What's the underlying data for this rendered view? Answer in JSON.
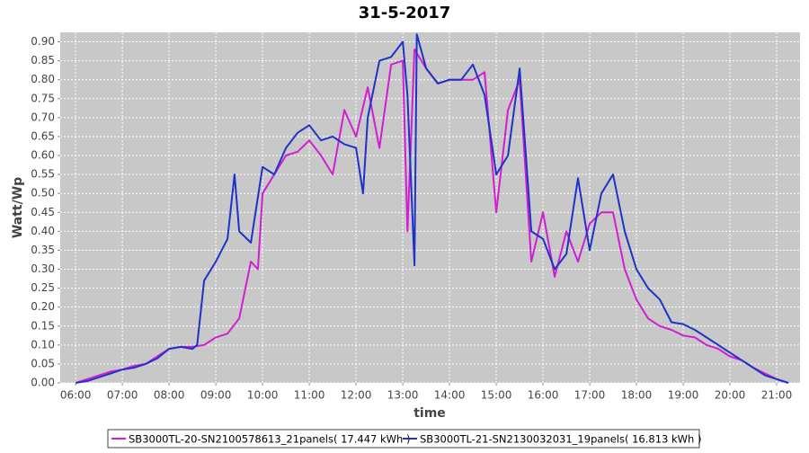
{
  "chart_data": {
    "type": "line",
    "title": "31-5-2017",
    "x_label": "time",
    "y_label": "Watt/Wp",
    "xlim": [
      5.67,
      21.5
    ],
    "ylim": [
      0,
      0.925
    ],
    "grid": true,
    "legend": "bottom",
    "xticks": [
      {
        "value": 6,
        "label": "06:00"
      },
      {
        "value": 7,
        "label": "07:00"
      },
      {
        "value": 8,
        "label": "08:00"
      },
      {
        "value": 9,
        "label": "09:00"
      },
      {
        "value": 10,
        "label": "10:00"
      },
      {
        "value": 11,
        "label": "11:00"
      },
      {
        "value": 12,
        "label": "12:00"
      },
      {
        "value": 13,
        "label": "13:00"
      },
      {
        "value": 14,
        "label": "14:00"
      },
      {
        "value": 15,
        "label": "15:00"
      },
      {
        "value": 16,
        "label": "16:00"
      },
      {
        "value": 17,
        "label": "17:00"
      },
      {
        "value": 18,
        "label": "18:00"
      },
      {
        "value": 19,
        "label": "19:00"
      },
      {
        "value": 20,
        "label": "20:00"
      },
      {
        "value": 21,
        "label": "21:00"
      }
    ],
    "yticks": [
      {
        "value": 0,
        "label": "0.00"
      },
      {
        "value": 0.05,
        "label": "0.05"
      },
      {
        "value": 0.1,
        "label": "0.10"
      },
      {
        "value": 0.15,
        "label": "0.15"
      },
      {
        "value": 0.2,
        "label": "0.20"
      },
      {
        "value": 0.25,
        "label": "0.25"
      },
      {
        "value": 0.3,
        "label": "0.30"
      },
      {
        "value": 0.35,
        "label": "0.35"
      },
      {
        "value": 0.4,
        "label": "0.40"
      },
      {
        "value": 0.45,
        "label": "0.45"
      },
      {
        "value": 0.5,
        "label": "0.50"
      },
      {
        "value": 0.55,
        "label": "0.55"
      },
      {
        "value": 0.6,
        "label": "0.60"
      },
      {
        "value": 0.65,
        "label": "0.65"
      },
      {
        "value": 0.7,
        "label": "0.70"
      },
      {
        "value": 0.75,
        "label": "0.75"
      },
      {
        "value": 0.8,
        "label": "0.80"
      },
      {
        "value": 0.85,
        "label": "0.85"
      },
      {
        "value": 0.9,
        "label": "0.90"
      }
    ],
    "series": [
      {
        "name": "SB3000TL-20-SN2100578613_21panels( 17.447 kWh )",
        "color": "#d21ed2",
        "x": [
          6.0,
          6.25,
          6.5,
          6.75,
          7.0,
          7.25,
          7.5,
          7.75,
          8.0,
          8.25,
          8.5,
          8.75,
          9.0,
          9.25,
          9.5,
          9.75,
          9.9,
          10.0,
          10.25,
          10.5,
          10.75,
          11.0,
          11.25,
          11.5,
          11.75,
          12.0,
          12.25,
          12.5,
          12.75,
          13.0,
          13.1,
          13.25,
          13.5,
          13.75,
          14.0,
          14.25,
          14.5,
          14.75,
          15.0,
          15.25,
          15.5,
          15.75,
          16.0,
          16.25,
          16.5,
          16.75,
          17.0,
          17.25,
          17.5,
          17.75,
          18.0,
          18.25,
          18.5,
          18.75,
          19.0,
          19.25,
          19.5,
          19.75,
          20.0,
          20.25,
          20.5,
          20.75,
          21.0,
          21.25
        ],
        "values": [
          0.0,
          0.01,
          0.02,
          0.03,
          0.035,
          0.045,
          0.05,
          0.07,
          0.09,
          0.095,
          0.095,
          0.1,
          0.12,
          0.13,
          0.17,
          0.32,
          0.3,
          0.5,
          0.55,
          0.6,
          0.61,
          0.64,
          0.6,
          0.55,
          0.72,
          0.65,
          0.78,
          0.62,
          0.84,
          0.85,
          0.4,
          0.88,
          0.83,
          0.79,
          0.8,
          0.8,
          0.8,
          0.82,
          0.45,
          0.72,
          0.8,
          0.32,
          0.45,
          0.28,
          0.4,
          0.32,
          0.42,
          0.45,
          0.45,
          0.3,
          0.22,
          0.17,
          0.15,
          0.14,
          0.125,
          0.12,
          0.1,
          0.09,
          0.07,
          0.06,
          0.04,
          0.025,
          0.01,
          0.0
        ]
      },
      {
        "name": "SB3000TL-21-SN2130032031_19panels( 16.813 kWh )",
        "color": "#1e32c8",
        "x": [
          6.0,
          6.25,
          6.5,
          6.75,
          7.0,
          7.25,
          7.5,
          7.75,
          8.0,
          8.25,
          8.5,
          8.6,
          8.75,
          9.0,
          9.25,
          9.4,
          9.5,
          9.75,
          10.0,
          10.25,
          10.5,
          10.75,
          11.0,
          11.25,
          11.5,
          11.75,
          12.0,
          12.15,
          12.25,
          12.5,
          12.75,
          13.0,
          13.1,
          13.25,
          13.3,
          13.5,
          13.75,
          14.0,
          14.25,
          14.5,
          14.75,
          15.0,
          15.25,
          15.5,
          15.75,
          16.0,
          16.25,
          16.5,
          16.75,
          17.0,
          17.25,
          17.5,
          17.75,
          18.0,
          18.25,
          18.5,
          18.75,
          19.0,
          19.25,
          19.5,
          19.75,
          20.0,
          20.25,
          20.5,
          20.75,
          21.0,
          21.25
        ],
        "values": [
          0.0,
          0.005,
          0.015,
          0.025,
          0.035,
          0.04,
          0.05,
          0.065,
          0.09,
          0.095,
          0.09,
          0.1,
          0.27,
          0.32,
          0.38,
          0.55,
          0.4,
          0.37,
          0.57,
          0.55,
          0.62,
          0.66,
          0.68,
          0.64,
          0.65,
          0.63,
          0.62,
          0.5,
          0.7,
          0.85,
          0.86,
          0.9,
          0.76,
          0.31,
          0.92,
          0.83,
          0.79,
          0.8,
          0.8,
          0.84,
          0.76,
          0.55,
          0.6,
          0.83,
          0.4,
          0.38,
          0.3,
          0.34,
          0.54,
          0.35,
          0.5,
          0.55,
          0.4,
          0.3,
          0.25,
          0.22,
          0.16,
          0.155,
          0.14,
          0.12,
          0.1,
          0.08,
          0.06,
          0.04,
          0.02,
          0.01,
          0.0
        ]
      }
    ]
  }
}
